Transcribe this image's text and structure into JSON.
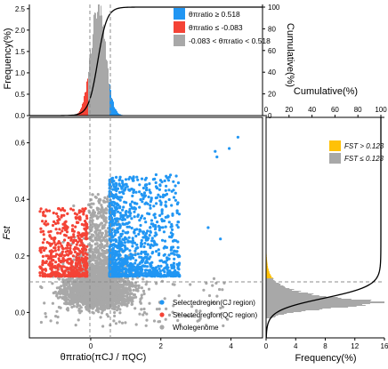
{
  "colors": {
    "selected_cj": "#2196F3",
    "selected_qc": "#F44336",
    "whole": "#A8A8A8",
    "fst_high": "#FFC107",
    "fst_low": "#A8A8A8",
    "cumulative_line": "#000000",
    "threshold_line": "#8C8C8C"
  },
  "chart_data": [
    {
      "panel": "top-histogram",
      "type": "area",
      "x_variable": "θπ ratio",
      "ylabel": "Frequency(%)",
      "ylim": [
        0,
        2.6
      ],
      "yticks": [
        "0.0",
        "0.5",
        "1.0",
        "1.5",
        "2.0",
        "2.5"
      ],
      "y2label": "Cumulative(%)",
      "y2lim": [
        0,
        100
      ],
      "y2ticks": [
        "0",
        "20",
        "40",
        "60",
        "80",
        "100"
      ],
      "legend": [
        {
          "label": "θπratio ≥ 0.518",
          "color": "#2196F3"
        },
        {
          "label": "θπratio ≤ -0.083",
          "color": "#F44336"
        },
        {
          "label": "-0.083 < θπratio < 0.518",
          "color": "#A8A8A8"
        }
      ],
      "legend_position": "top-right",
      "thresholds": [
        -0.083,
        0.518
      ],
      "distribution": {
        "mode": 0.2,
        "peak_frequency": 2.5,
        "sd": 0.22
      },
      "cumulative_curve": {
        "x50": 0.2,
        "range": [
          0,
          100
        ]
      }
    },
    {
      "panel": "main-scatter",
      "type": "scatter",
      "xlabel": "θπratio(πCJ / πQC)",
      "ylabel": "Fst",
      "xlim": [
        -1.75,
        4.9
      ],
      "ylim": [
        -0.09,
        0.69
      ],
      "xticks": [
        "0",
        "2",
        "4"
      ],
      "yticks": [
        "0.0",
        "0.2",
        "0.4",
        "0.6"
      ],
      "thresholds": {
        "theta_low": -0.083,
        "theta_high": 0.518,
        "fst": 0.123
      },
      "series": [
        {
          "name": "Selectedregion(CJ region)",
          "color": "#2196F3",
          "x_range": [
            0.518,
            4.2
          ],
          "y_range": [
            0.123,
            0.62
          ]
        },
        {
          "name": "Selectedregion(QC region)",
          "color": "#F44336",
          "x_range": [
            -1.45,
            -0.083
          ],
          "y_range": [
            0.123,
            0.37
          ]
        },
        {
          "name": "Wholegenome",
          "color": "#A8A8A8",
          "x_range": [
            -1.5,
            4.1
          ],
          "y_range": [
            -0.06,
            0.43
          ]
        }
      ],
      "legend_position": "bottom-right",
      "extreme_points": [
        {
          "x": 4.2,
          "y": 0.62
        },
        {
          "x": 3.55,
          "y": 0.57
        },
        {
          "x": 3.95,
          "y": 0.58
        },
        {
          "x": 3.6,
          "y": 0.55
        },
        {
          "x": 3.35,
          "y": 0.3
        },
        {
          "x": 3.7,
          "y": 0.26
        }
      ]
    },
    {
      "panel": "right-histogram",
      "type": "area",
      "y_variable": "Fst",
      "xlabel": "Frequency(%)",
      "xlim": [
        0,
        16
      ],
      "xticks": [
        "0",
        "4",
        "8",
        "12",
        "16"
      ],
      "x2label": "Cumulative(%)",
      "x2lim": [
        0,
        100
      ],
      "x2ticks": [
        "0",
        "20",
        "40",
        "60",
        "80",
        "100"
      ],
      "legend": [
        {
          "label": "FST > 0.123",
          "color": "#FFC107"
        },
        {
          "label": "FST ≤ 0.123",
          "color": "#A8A8A8"
        }
      ],
      "legend_position": "top-right",
      "threshold": 0.123,
      "distribution": {
        "mode": 0.04,
        "peak_frequency": 15.5
      }
    }
  ],
  "labels": {
    "top_ylabel": "Frequency(%)",
    "top_y2label": "Cumulative(%)",
    "top_legend": [
      "θπratio ≥ 0.518",
      "θπratio ≤ -0.083",
      "-0.083 < θπratio < 0.518"
    ],
    "main_xlabel": "θπratio(πCJ / πQC)",
    "main_ylabel": "Fst",
    "main_legend": [
      "Selectedregion(CJ region)",
      "Selectedregion(QC region)",
      "Wholegenome"
    ],
    "right_xlabel": "Frequency(%)",
    "right_x2label": "Cumulative(%)",
    "right_legend": [
      "FST > 0.123",
      "FST ≤ 0.123"
    ]
  }
}
